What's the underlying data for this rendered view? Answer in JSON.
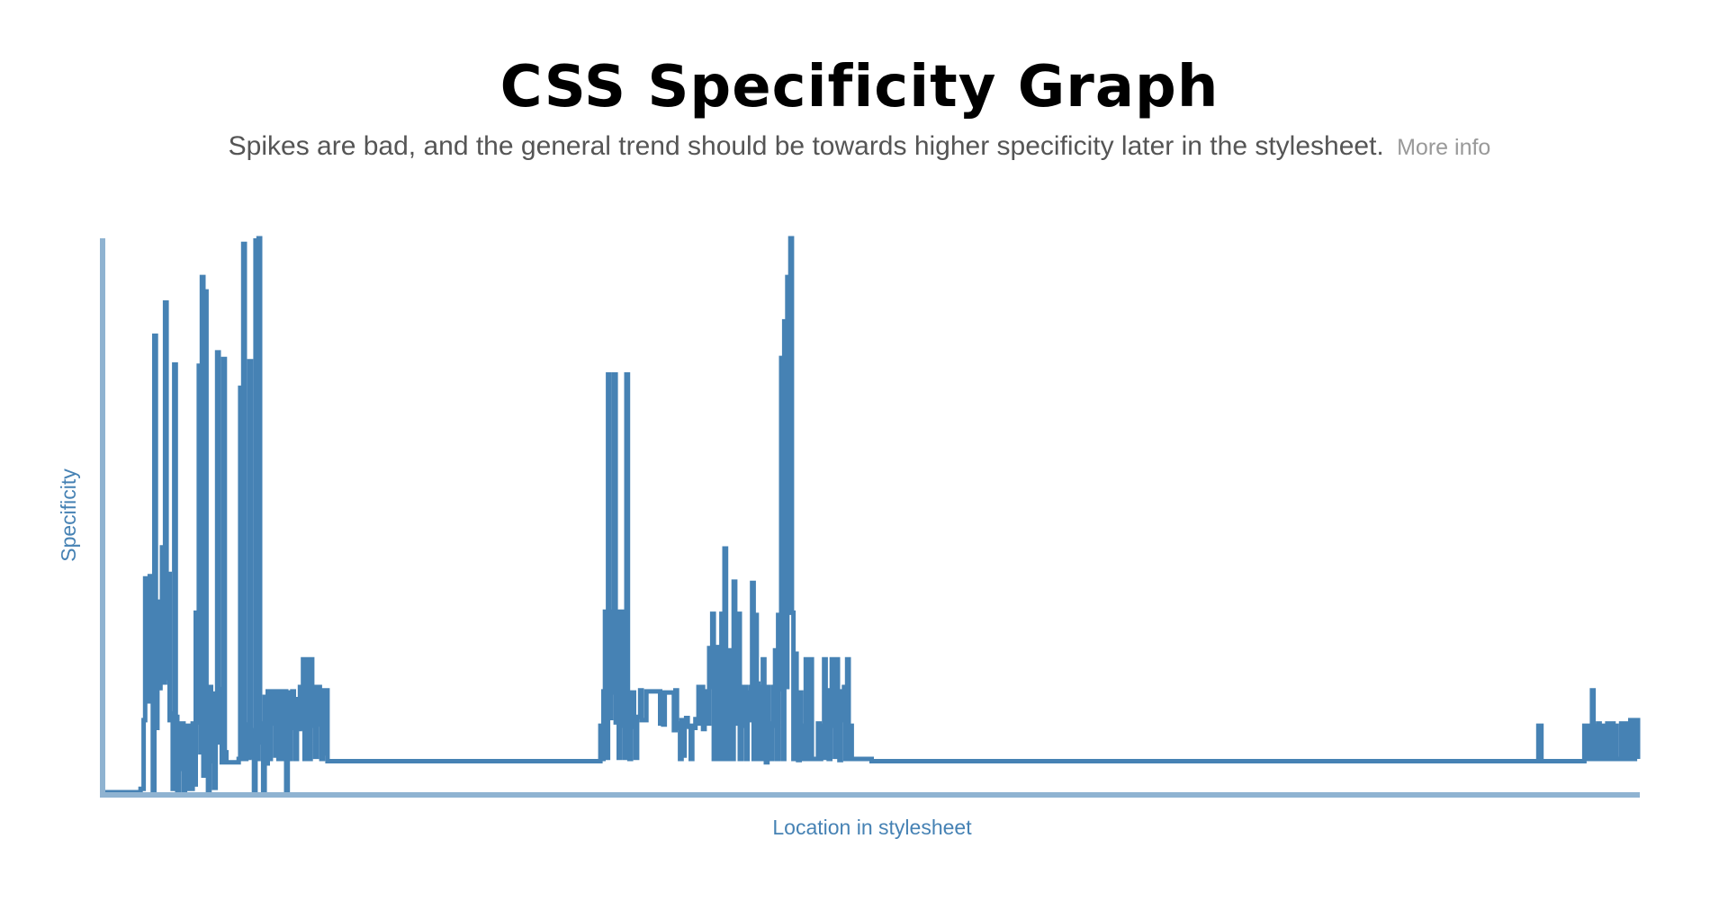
{
  "header": {
    "title": "CSS Specificity Graph",
    "subtitle": "Spikes are bad, and the general trend should be towards higher specificity later in the stylesheet.",
    "more_info_label": "More info"
  },
  "colors": {
    "line": "#4682b4",
    "axis": "#8fb3d1",
    "title": "#000000",
    "subtitle": "#555555",
    "link": "#999999"
  },
  "chart_data": {
    "type": "line",
    "title": "CSS Specificity Graph",
    "xlabel": "Location in stylesheet",
    "ylabel": "Specificity",
    "xlim": [
      0,
      1000
    ],
    "ylim": [
      0,
      50
    ],
    "grid": false,
    "series": [
      {
        "values": [
          [
            0,
            0.0
          ],
          [
            23,
            0.3
          ],
          [
            25,
            6.5
          ],
          [
            26,
            19.3
          ],
          [
            27,
            17.8
          ],
          [
            28,
            8.2
          ],
          [
            29,
            19.5
          ],
          [
            30,
            12.1
          ],
          [
            31,
            0.1
          ],
          [
            32,
            41.2
          ],
          [
            33,
            5.8
          ],
          [
            34,
            17.2
          ],
          [
            35,
            9.4
          ],
          [
            36,
            12.8
          ],
          [
            37,
            22.1
          ],
          [
            38,
            9.9
          ],
          [
            39,
            44.2
          ],
          [
            40,
            10.3
          ],
          [
            41,
            19.7
          ],
          [
            42,
            6.5
          ],
          [
            43,
            7.1
          ],
          [
            44,
            0.3
          ],
          [
            45,
            38.6
          ],
          [
            46,
            6.8
          ],
          [
            47,
            0.1
          ],
          [
            48,
            6.2
          ],
          [
            49,
            2.1
          ],
          [
            50,
            6.2
          ],
          [
            51,
            0.2
          ],
          [
            52,
            6.0
          ],
          [
            53,
            0.3
          ],
          [
            54,
            3.6
          ],
          [
            55,
            6.0
          ],
          [
            56,
            0.3
          ],
          [
            57,
            6.2
          ],
          [
            58,
            0.7
          ],
          [
            59,
            16.2
          ],
          [
            60,
            6.3
          ],
          [
            61,
            38.5
          ],
          [
            62,
            3.6
          ],
          [
            63,
            46.5
          ],
          [
            64,
            1.5
          ],
          [
            65,
            45.2
          ],
          [
            66,
            7.2
          ],
          [
            67,
            0.2
          ],
          [
            68,
            9.5
          ],
          [
            69,
            2.8
          ],
          [
            70,
            8.9
          ],
          [
            71,
            0.4
          ],
          [
            72,
            8.1
          ],
          [
            73,
            39.7
          ],
          [
            74,
            4.5
          ],
          [
            75,
            9.3
          ],
          [
            76,
            2.7
          ],
          [
            77,
            39.1
          ],
          [
            78,
            3.6
          ],
          [
            79,
            2.7
          ],
          [
            82,
            2.7
          ],
          [
            87,
            3.0
          ],
          [
            88,
            36.5
          ],
          [
            89,
            3.0
          ],
          [
            90,
            49.5
          ],
          [
            91,
            3.0
          ],
          [
            92,
            6.1
          ],
          [
            93,
            3.1
          ],
          [
            94,
            38.9
          ],
          [
            95,
            5.6
          ],
          [
            96,
            3.2
          ],
          [
            97,
            0.1
          ],
          [
            98,
            49.8
          ],
          [
            99,
            3.0
          ],
          [
            100,
            50.0
          ],
          [
            101,
            4.5
          ],
          [
            102,
            6.2
          ],
          [
            103,
            0.0
          ],
          [
            104,
            8.6
          ],
          [
            105,
            2.6
          ],
          [
            106,
            9.1
          ],
          [
            107,
            3.0
          ],
          [
            108,
            6.7
          ],
          [
            109,
            9.1
          ],
          [
            110,
            6.2
          ],
          [
            111,
            3.3
          ],
          [
            112,
            9.1
          ],
          [
            113,
            3.0
          ],
          [
            114,
            9.1
          ],
          [
            115,
            5.9
          ],
          [
            116,
            3.0
          ],
          [
            117,
            9.1
          ],
          [
            118,
            0.0
          ],
          [
            119,
            9.0
          ],
          [
            120,
            3.0
          ],
          [
            121,
            5.8
          ],
          [
            122,
            9.1
          ],
          [
            123,
            6.4
          ],
          [
            124,
            3.0
          ],
          [
            125,
            8.4
          ],
          [
            126,
            5.7
          ],
          [
            127,
            9.5
          ],
          [
            128,
            5.8
          ],
          [
            129,
            12.0
          ],
          [
            130,
            3.0
          ],
          [
            131,
            12.0
          ],
          [
            132,
            6.0
          ],
          [
            133,
            3.0
          ],
          [
            134,
            12.0
          ],
          [
            135,
            6.0
          ],
          [
            136,
            9.5
          ],
          [
            137,
            3.2
          ],
          [
            138,
            6.2
          ],
          [
            139,
            9.5
          ],
          [
            140,
            6.1
          ],
          [
            141,
            3.0
          ],
          [
            142,
            9.2
          ],
          [
            143,
            3.5
          ],
          [
            144,
            9.2
          ],
          [
            145,
            2.8
          ],
          [
            146,
            2.8
          ],
          [
            200,
            2.8
          ],
          [
            260,
            2.8
          ],
          [
            316,
            2.8
          ],
          [
            322,
            2.8
          ],
          [
            323,
            6.0
          ],
          [
            324,
            3.0
          ],
          [
            325,
            9.1
          ],
          [
            326,
            16.3
          ],
          [
            327,
            3.1
          ],
          [
            328,
            37.7
          ],
          [
            329,
            6.7
          ],
          [
            330,
            16.3
          ],
          [
            331,
            9.0
          ],
          [
            332,
            37.7
          ],
          [
            333,
            6.3
          ],
          [
            334,
            16.3
          ],
          [
            335,
            3.1
          ],
          [
            336,
            9.0
          ],
          [
            337,
            16.3
          ],
          [
            338,
            6.0
          ],
          [
            339,
            3.1
          ],
          [
            340,
            37.7
          ],
          [
            341,
            9.0
          ],
          [
            342,
            3.0
          ],
          [
            343,
            6.0
          ],
          [
            344,
            9.0
          ],
          [
            345,
            5.9
          ],
          [
            346,
            3.1
          ],
          [
            347,
            6.8
          ],
          [
            348,
            6.8
          ],
          [
            349,
            9.2
          ],
          [
            350,
            6.5
          ],
          [
            352,
            6.5
          ],
          [
            353,
            9.1
          ],
          [
            361,
            9.1
          ],
          [
            362,
            6.2
          ],
          [
            363,
            9.0
          ],
          [
            364,
            6.1
          ],
          [
            365,
            9.0
          ],
          [
            370,
            9.0
          ],
          [
            371,
            5.6
          ],
          [
            372,
            9.2
          ],
          [
            373,
            5.8
          ],
          [
            374,
            6.2
          ],
          [
            375,
            3.0
          ],
          [
            376,
            6.5
          ],
          [
            377,
            3.3
          ],
          [
            378,
            6.4
          ],
          [
            379,
            6.7
          ],
          [
            380,
            6.0
          ],
          [
            381,
            5.9
          ],
          [
            382,
            3.0
          ],
          [
            383,
            6.0
          ],
          [
            384,
            5.8
          ],
          [
            385,
            6.6
          ],
          [
            386,
            6.2
          ],
          [
            387,
            9.5
          ],
          [
            388,
            6.2
          ],
          [
            389,
            9.5
          ],
          [
            390,
            5.7
          ],
          [
            391,
            9.1
          ],
          [
            392,
            8.9
          ],
          [
            393,
            6.2
          ],
          [
            394,
            13.0
          ],
          [
            395,
            9.5
          ],
          [
            396,
            16.1
          ],
          [
            397,
            3.0
          ],
          [
            398,
            9.5
          ],
          [
            399,
            13.1
          ],
          [
            400,
            3.0
          ],
          [
            401,
            9.1
          ],
          [
            402,
            16.1
          ],
          [
            403,
            3.0
          ],
          [
            404,
            22.0
          ],
          [
            405,
            9.8
          ],
          [
            406,
            3.0
          ],
          [
            407,
            12.8
          ],
          [
            408,
            9.5
          ],
          [
            409,
            3.0
          ],
          [
            410,
            19.0
          ],
          [
            411,
            6.2
          ],
          [
            412,
            9.5
          ],
          [
            413,
            16.1
          ],
          [
            414,
            3.0
          ],
          [
            415,
            9.5
          ],
          [
            416,
            6.0
          ],
          [
            417,
            9.5
          ],
          [
            418,
            3.0
          ],
          [
            419,
            9.0
          ],
          [
            420,
            6.5
          ],
          [
            421,
            9.5
          ],
          [
            422,
            18.9
          ],
          [
            423,
            3.0
          ],
          [
            424,
            16.0
          ],
          [
            425,
            9.8
          ],
          [
            426,
            3.0
          ],
          [
            427,
            9.5
          ],
          [
            428,
            3.0
          ],
          [
            429,
            12.0
          ],
          [
            430,
            9.5
          ],
          [
            431,
            2.7
          ],
          [
            432,
            9.5
          ],
          [
            433,
            6.2
          ],
          [
            434,
            3.0
          ],
          [
            435,
            6.0
          ],
          [
            436,
            9.5
          ],
          [
            437,
            12.8
          ],
          [
            438,
            3.0
          ],
          [
            439,
            16.0
          ],
          [
            440,
            9.3
          ],
          [
            441,
            39.2
          ],
          [
            442,
            3.0
          ],
          [
            443,
            42.5
          ],
          [
            444,
            9.5
          ],
          [
            445,
            46.5
          ],
          [
            446,
            16.2
          ],
          [
            447,
            50.0
          ],
          [
            448,
            16.2
          ],
          [
            449,
            3.0
          ],
          [
            450,
            12.5
          ],
          [
            451,
            6.1
          ],
          [
            452,
            2.9
          ],
          [
            453,
            9.0
          ],
          [
            454,
            3.0
          ],
          [
            455,
            6.0
          ],
          [
            456,
            3.0
          ],
          [
            457,
            12.0
          ],
          [
            458,
            9.5
          ],
          [
            459,
            3.0
          ],
          [
            460,
            12.0
          ],
          [
            461,
            3.0
          ],
          [
            464,
            3.0
          ],
          [
            465,
            6.2
          ],
          [
            466,
            3.0
          ],
          [
            467,
            6.0
          ],
          [
            468,
            3.1
          ],
          [
            469,
            12.0
          ],
          [
            470,
            3.1
          ],
          [
            471,
            9.2
          ],
          [
            472,
            3.0
          ],
          [
            473,
            6.0
          ],
          [
            474,
            12.0
          ],
          [
            475,
            6.1
          ],
          [
            476,
            3.2
          ],
          [
            477,
            12.0
          ],
          [
            478,
            6.2
          ],
          [
            479,
            2.9
          ],
          [
            480,
            9.1
          ],
          [
            481,
            6.5
          ],
          [
            482,
            9.5
          ],
          [
            483,
            3.0
          ],
          [
            484,
            12.0
          ],
          [
            485,
            3.0
          ],
          [
            486,
            6.0
          ],
          [
            487,
            3.0
          ],
          [
            500,
            2.8
          ],
          [
            650,
            2.8
          ],
          [
            800,
            2.8
          ],
          [
            934,
            2.8
          ],
          [
            935,
            6.0
          ],
          [
            936,
            6.0
          ],
          [
            937,
            2.8
          ],
          [
            964,
            2.8
          ],
          [
            965,
            6.0
          ],
          [
            966,
            3.0
          ],
          [
            967,
            6.0
          ],
          [
            968,
            3.0
          ],
          [
            970,
            9.2
          ],
          [
            971,
            6.0
          ],
          [
            972,
            3.0
          ],
          [
            973,
            6.0
          ],
          [
            974,
            6.2
          ],
          [
            975,
            3.0
          ],
          [
            976,
            6.0
          ],
          [
            977,
            3.0
          ],
          [
            978,
            6.0
          ],
          [
            979,
            3.0
          ],
          [
            980,
            6.2
          ],
          [
            981,
            3.0
          ],
          [
            982,
            6.2
          ],
          [
            983,
            6.2
          ],
          [
            984,
            3.0
          ],
          [
            985,
            6.0
          ],
          [
            986,
            3.0
          ],
          [
            988,
            3.0
          ],
          [
            989,
            6.2
          ],
          [
            990,
            6.2
          ],
          [
            991,
            3.0
          ],
          [
            992,
            6.2
          ],
          [
            993,
            6.2
          ],
          [
            994,
            3.0
          ],
          [
            995,
            6.5
          ],
          [
            996,
            6.5
          ],
          [
            997,
            3.0
          ],
          [
            998,
            6.5
          ],
          [
            999,
            6.5
          ],
          [
            1000,
            3.0
          ]
        ]
      }
    ]
  }
}
